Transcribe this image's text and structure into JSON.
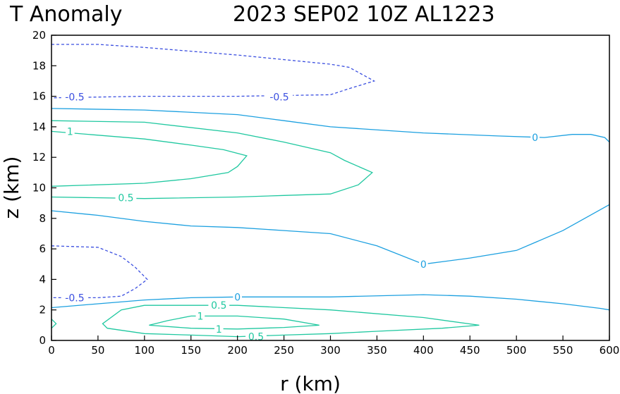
{
  "title_left": "T Anomaly",
  "title_right": "2023 SEP02 10Z  AL1223",
  "chart_data": {
    "type": "contour",
    "title": "T Anomaly",
    "subtitle": "2023 SEP02 10Z  AL1223",
    "xlabel": "r (km)",
    "ylabel": "z (km)",
    "xlim": [
      0,
      600
    ],
    "ylim": [
      0,
      20
    ],
    "xticks": [
      0,
      50,
      100,
      150,
      200,
      250,
      300,
      350,
      400,
      450,
      500,
      550,
      600
    ],
    "yticks": [
      0,
      2,
      4,
      6,
      8,
      10,
      12,
      14,
      16,
      18,
      20
    ],
    "grid": false,
    "colors": {
      "negative": "#3b4fe0",
      "zero": "#1ca0e0",
      "positive": "#20c8a0"
    },
    "contours": [
      {
        "level": -0.5,
        "dashed": true,
        "points": [
          [
            0,
            19.4
          ],
          [
            50,
            19.4
          ],
          [
            100,
            19.2
          ],
          [
            200,
            18.7
          ],
          [
            300,
            18.1
          ],
          [
            320,
            17.9
          ],
          [
            347,
            17.0
          ],
          [
            320,
            16.5
          ],
          [
            300,
            16.1
          ],
          [
            200,
            16.0
          ],
          [
            100,
            16.0
          ],
          [
            0,
            15.9
          ]
        ],
        "labels": [
          {
            "text": "-0.5",
            "x": 25,
            "y": 15.95
          },
          {
            "text": "-0.5",
            "x": 245,
            "y": 15.95
          }
        ]
      },
      {
        "level": -0.5,
        "dashed": true,
        "points": [
          [
            0,
            6.2
          ],
          [
            50,
            6.1
          ],
          [
            75,
            5.5
          ],
          [
            90,
            4.8
          ],
          [
            103,
            4.0
          ],
          [
            90,
            3.4
          ],
          [
            75,
            2.9
          ],
          [
            50,
            2.8
          ],
          [
            0,
            2.8
          ]
        ],
        "labels": [
          {
            "text": "-0.5",
            "x": 25,
            "y": 2.8
          }
        ]
      },
      {
        "level": 0,
        "dashed": false,
        "points": [
          [
            0,
            15.2
          ],
          [
            100,
            15.1
          ],
          [
            200,
            14.8
          ],
          [
            250,
            14.4
          ],
          [
            300,
            14.0
          ],
          [
            400,
            13.6
          ],
          [
            480,
            13.4
          ],
          [
            530,
            13.3
          ],
          [
            560,
            13.5
          ],
          [
            580,
            13.5
          ],
          [
            595,
            13.3
          ],
          [
            600,
            13.0
          ]
        ],
        "labels": [
          {
            "text": "0",
            "x": 520,
            "y": 13.3
          }
        ]
      },
      {
        "level": 0,
        "dashed": false,
        "points": [
          [
            0,
            8.5
          ],
          [
            50,
            8.2
          ],
          [
            100,
            7.8
          ],
          [
            150,
            7.5
          ],
          [
            200,
            7.4
          ],
          [
            250,
            7.2
          ],
          [
            300,
            7.0
          ],
          [
            350,
            6.2
          ],
          [
            400,
            5.0
          ],
          [
            450,
            5.4
          ],
          [
            500,
            5.9
          ],
          [
            550,
            7.2
          ],
          [
            600,
            8.9
          ]
        ],
        "labels": [
          {
            "text": "0",
            "x": 400,
            "y": 5.0
          }
        ]
      },
      {
        "level": 0,
        "dashed": false,
        "points": [
          [
            0,
            2.15
          ],
          [
            50,
            2.4
          ],
          [
            100,
            2.65
          ],
          [
            150,
            2.8
          ],
          [
            200,
            2.85
          ],
          [
            300,
            2.85
          ],
          [
            400,
            3.0
          ],
          [
            450,
            2.9
          ],
          [
            500,
            2.7
          ],
          [
            550,
            2.4
          ],
          [
            590,
            2.1
          ],
          [
            600,
            2.0
          ]
        ],
        "labels": [
          {
            "text": "0",
            "x": 200,
            "y": 2.85
          }
        ]
      },
      {
        "level": 0.5,
        "dashed": false,
        "points": [
          [
            0,
            14.4
          ],
          [
            100,
            14.3
          ],
          [
            200,
            13.6
          ],
          [
            250,
            13.0
          ],
          [
            300,
            12.3
          ],
          [
            315,
            11.8
          ],
          [
            345,
            11.0
          ],
          [
            330,
            10.2
          ],
          [
            300,
            9.6
          ],
          [
            250,
            9.5
          ],
          [
            200,
            9.4
          ],
          [
            100,
            9.3
          ],
          [
            0,
            9.4
          ]
        ],
        "labels": [
          {
            "text": "0.5",
            "x": 80,
            "y": 9.35
          }
        ]
      },
      {
        "level": 1,
        "dashed": false,
        "points": [
          [
            0,
            13.7
          ],
          [
            100,
            13.2
          ],
          [
            150,
            12.8
          ],
          [
            185,
            12.5
          ],
          [
            210,
            12.1
          ],
          [
            200,
            11.4
          ],
          [
            190,
            11.0
          ],
          [
            150,
            10.6
          ],
          [
            100,
            10.3
          ],
          [
            0,
            10.1
          ]
        ],
        "labels": [
          {
            "text": "1",
            "x": 20,
            "y": 13.7
          }
        ]
      },
      {
        "level": 0.5,
        "dashed": false,
        "points": [
          [
            100,
            2.3
          ],
          [
            200,
            2.3
          ],
          [
            300,
            2.0
          ],
          [
            400,
            1.5
          ],
          [
            460,
            1.0
          ],
          [
            420,
            0.8
          ],
          [
            350,
            0.6
          ],
          [
            300,
            0.45
          ],
          [
            250,
            0.35
          ],
          [
            200,
            0.25
          ],
          [
            150,
            0.35
          ],
          [
            100,
            0.45
          ],
          [
            60,
            0.8
          ],
          [
            55,
            1.1
          ],
          [
            75,
            2.0
          ],
          [
            100,
            2.3
          ]
        ],
        "labels": [
          {
            "text": "0.5",
            "x": 180,
            "y": 2.3
          },
          {
            "text": "0.5",
            "x": 220,
            "y": 0.25
          }
        ]
      },
      {
        "level": 1,
        "dashed": false,
        "points": [
          [
            150,
            1.6
          ],
          [
            200,
            1.6
          ],
          [
            250,
            1.4
          ],
          [
            288,
            1.0
          ],
          [
            250,
            0.85
          ],
          [
            200,
            0.75
          ],
          [
            150,
            0.8
          ],
          [
            105,
            1.0
          ],
          [
            125,
            1.3
          ],
          [
            150,
            1.6
          ]
        ],
        "labels": [
          {
            "text": "1",
            "x": 160,
            "y": 1.6
          },
          {
            "text": "1",
            "x": 180,
            "y": 0.75
          }
        ]
      },
      {
        "level": 0.5,
        "dashed": false,
        "points": [
          [
            0,
            1.4
          ],
          [
            5,
            1.1
          ],
          [
            0,
            0.8
          ]
        ],
        "labels": []
      }
    ]
  }
}
